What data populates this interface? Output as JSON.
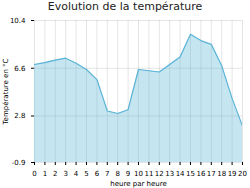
{
  "chart_data": {
    "type": "area",
    "title": "Evolution de la température",
    "xlabel": "heure par heure",
    "ylabel": "Température en °C",
    "x": [
      0,
      1,
      2,
      3,
      4,
      5,
      6,
      7,
      8,
      9,
      10,
      11,
      12,
      13,
      14,
      15,
      16,
      17,
      18,
      19,
      20
    ],
    "values": [
      6.9,
      7.05,
      7.25,
      7.4,
      7.0,
      6.5,
      5.7,
      3.2,
      3.0,
      3.3,
      6.5,
      6.4,
      6.3,
      6.9,
      7.5,
      9.3,
      8.8,
      8.5,
      6.8,
      4.2,
      2.0
    ],
    "color": "#5ab4d6",
    "xlim": [
      0,
      20
    ],
    "ylim": [
      -0.9,
      10.4
    ],
    "xticks": [
      0,
      1,
      2,
      3,
      4,
      5,
      6,
      7,
      8,
      9,
      10,
      11,
      12,
      13,
      14,
      15,
      16,
      17,
      18,
      19,
      20
    ],
    "yticks": [
      -0.9,
      2.8,
      6.6,
      10.4
    ],
    "grid": true
  }
}
